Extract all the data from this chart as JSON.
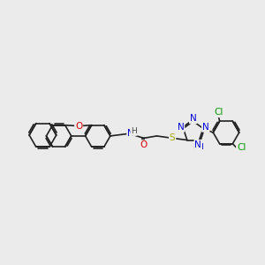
{
  "bg_color": "#ebebeb",
  "bond_color": "#222222",
  "bond_width": 1.2,
  "atom_colors": {
    "O": "#dd0000",
    "N": "#0000dd",
    "S": "#aaaa00",
    "Cl": "#009900",
    "H": "#444444",
    "C": "#222222"
  },
  "font_size_atom": 7.5,
  "xlim": [
    0,
    10
  ],
  "ylim": [
    2.5,
    7.5
  ]
}
